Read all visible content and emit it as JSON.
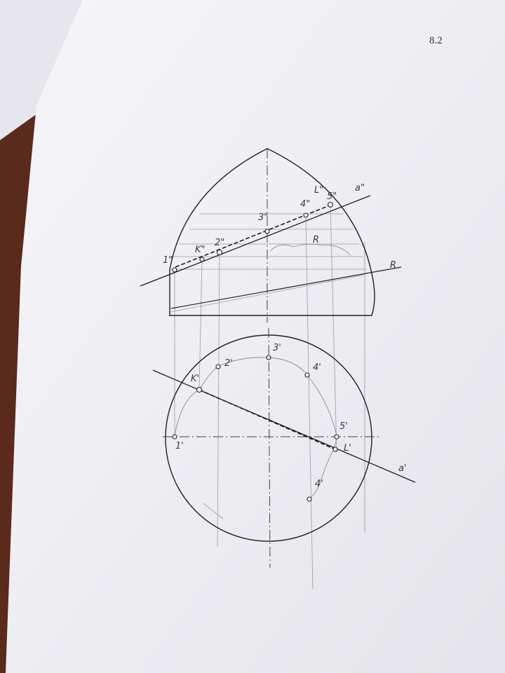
{
  "page": {
    "number": "8.2"
  },
  "front_view": {
    "labels": {
      "p1": "1\"",
      "pK": "K\"",
      "p2": "2\"",
      "p3": "3\"",
      "p4": "4\"",
      "pL": "L\"",
      "p5": "5\"",
      "line_a": "a\"",
      "plane_R": "R",
      "radius": "R"
    }
  },
  "top_view": {
    "labels": {
      "p1": "1'",
      "pK": "K'",
      "p2": "2'",
      "p3": "3'",
      "p4": "4'",
      "p5": "5'",
      "pL": "L'",
      "p4b": "4'",
      "line_a": "a'"
    }
  },
  "colors": {
    "paper": "#f2f2f6",
    "ink": "#1e1e24",
    "pencil": "#8a8a94",
    "table": "#5a2a1c"
  }
}
